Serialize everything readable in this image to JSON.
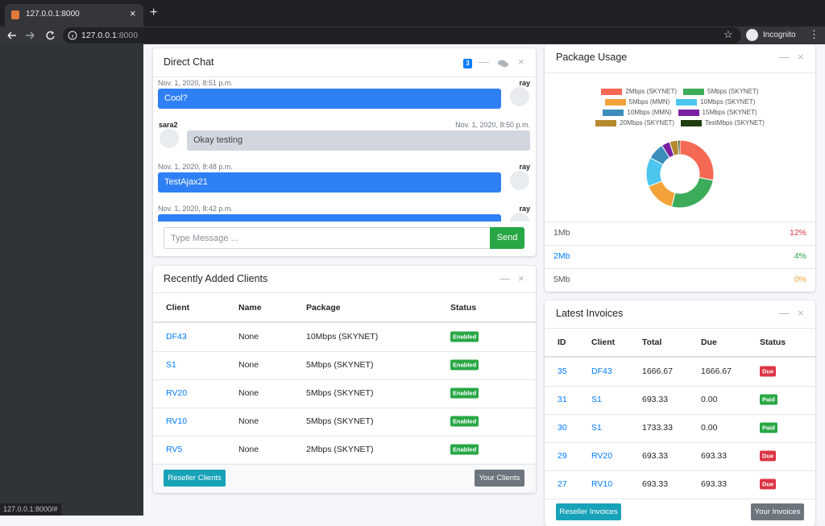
{
  "browser": {
    "tab_title": "127.0.0.1:8000",
    "url_host": "127.0.0.1",
    "url_port": ":8000",
    "profile": "Incognito",
    "status_url": "127.0.0.1:8000/#"
  },
  "direct_chat": {
    "title": "Direct Chat",
    "badge": "3",
    "messages": [
      {
        "name": "ray",
        "time": "Nov. 1, 2020, 8:51 p.m.",
        "text": "Cool?",
        "align": "right"
      },
      {
        "name": "sara2",
        "time": "Nov. 1, 2020, 8:50 p.m.",
        "text": "Okay testing",
        "align": "left"
      },
      {
        "name": "ray",
        "time": "Nov. 1, 2020, 8:48 p.m.",
        "text": "TestAjax21",
        "align": "right"
      },
      {
        "name": "ray",
        "time": "Nov. 1, 2020, 8:42 p.m.",
        "align": "right"
      }
    ],
    "input_placeholder": "Type Message ...",
    "send": "Send"
  },
  "clients": {
    "title": "Recently Added Clients",
    "headers": [
      "Client",
      "Name",
      "Package",
      "Status"
    ],
    "rows": [
      [
        "DF43",
        "None",
        "10Mbps (SKYNET)",
        "Enabled"
      ],
      [
        "S1",
        "None",
        "5Mbps (SKYNET)",
        "Enabled"
      ],
      [
        "RV20",
        "None",
        "5Mbps (SKYNET)",
        "Enabled"
      ],
      [
        "RV10",
        "None",
        "5Mbps (SKYNET)",
        "Enabled"
      ],
      [
        "RV5",
        "None",
        "2Mbps (SKYNET)",
        "Enabled"
      ]
    ],
    "buttons": [
      "Reseller Clients",
      "Your Clients"
    ]
  },
  "chart_data": {
    "type": "doughnut",
    "title": "Package Usage",
    "categories": [
      "2Mbps (SKYNET)",
      "5Mbps (SKYNET)",
      "5Mbps (MMN)",
      "10Mbps (SKYNET)",
      "10Mbps (MMN)",
      "15Mbps (SKYNET)",
      "20Mbps (SKYNET)",
      "TestMbps (SKYNET)"
    ],
    "values": [
      28,
      26,
      15,
      14,
      8,
      4,
      4,
      1
    ],
    "colors": [
      "#f56954",
      "#3cab5a",
      "#f3a23a",
      "#4cc6ef",
      "#3c8dbc",
      "#7b1fa2",
      "#b5892e",
      "#1f3d10"
    ]
  },
  "usage_stats": [
    {
      "label": "1Mb",
      "change": "12%",
      "color": "#dc3545",
      "direction": "down"
    },
    {
      "label": "2Mb",
      "change": "4%",
      "color": "#28a745",
      "direction": "up"
    },
    {
      "label": "5Mb",
      "change": "0%",
      "color": "#f3a23a",
      "direction": "left"
    }
  ],
  "invoices": {
    "title": "Latest Invoices",
    "headers": [
      "ID",
      "Client",
      "Total",
      "Due",
      "Status"
    ],
    "rows": [
      [
        "35",
        "DF43",
        "1666.67",
        "1666.67",
        "Due"
      ],
      [
        "31",
        "S1",
        "693.33",
        "0.00",
        "Paid"
      ],
      [
        "30",
        "S1",
        "1733.33",
        "0.00",
        "Paid"
      ],
      [
        "29",
        "RV20",
        "693.33",
        "693.33",
        "Due"
      ],
      [
        "27",
        "RV10",
        "693.33",
        "693.33",
        "Due"
      ]
    ],
    "buttons": [
      "Reseller Invoices",
      "Your Invoices"
    ]
  }
}
